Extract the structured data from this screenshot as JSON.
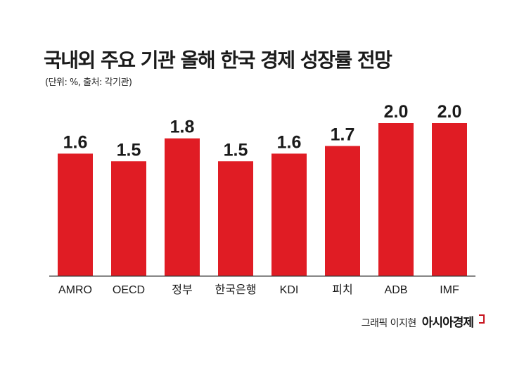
{
  "header": {
    "title": "국내외 주요 기관 올해 한국 경제 성장률 전망",
    "subtitle": "(단위: %, 출처: 각기관)"
  },
  "credit": {
    "byline": "그래픽 이지현",
    "brand": "아시아경제"
  },
  "colors": {
    "bar": "#e01c24",
    "axis": "#333333",
    "text": "#1a1a1a"
  },
  "chart_data": {
    "type": "bar",
    "title": "국내외 주요 기관 올해 한국 경제 성장률 전망",
    "subtitle": "(단위: %, 출처: 각기관)",
    "categories": [
      "AMRO",
      "OECD",
      "정부",
      "한국은행",
      "KDI",
      "피치",
      "ADB",
      "IMF"
    ],
    "values": [
      1.6,
      1.5,
      1.8,
      1.5,
      1.6,
      1.7,
      2.0,
      2.0
    ],
    "value_labels": [
      "1.6",
      "1.5",
      "1.8",
      "1.5",
      "1.6",
      "1.7",
      "2.0",
      "2.0"
    ],
    "xlabel": "",
    "ylabel": "",
    "ylim": [
      0,
      2.2
    ],
    "grid": false,
    "legend": "none"
  }
}
